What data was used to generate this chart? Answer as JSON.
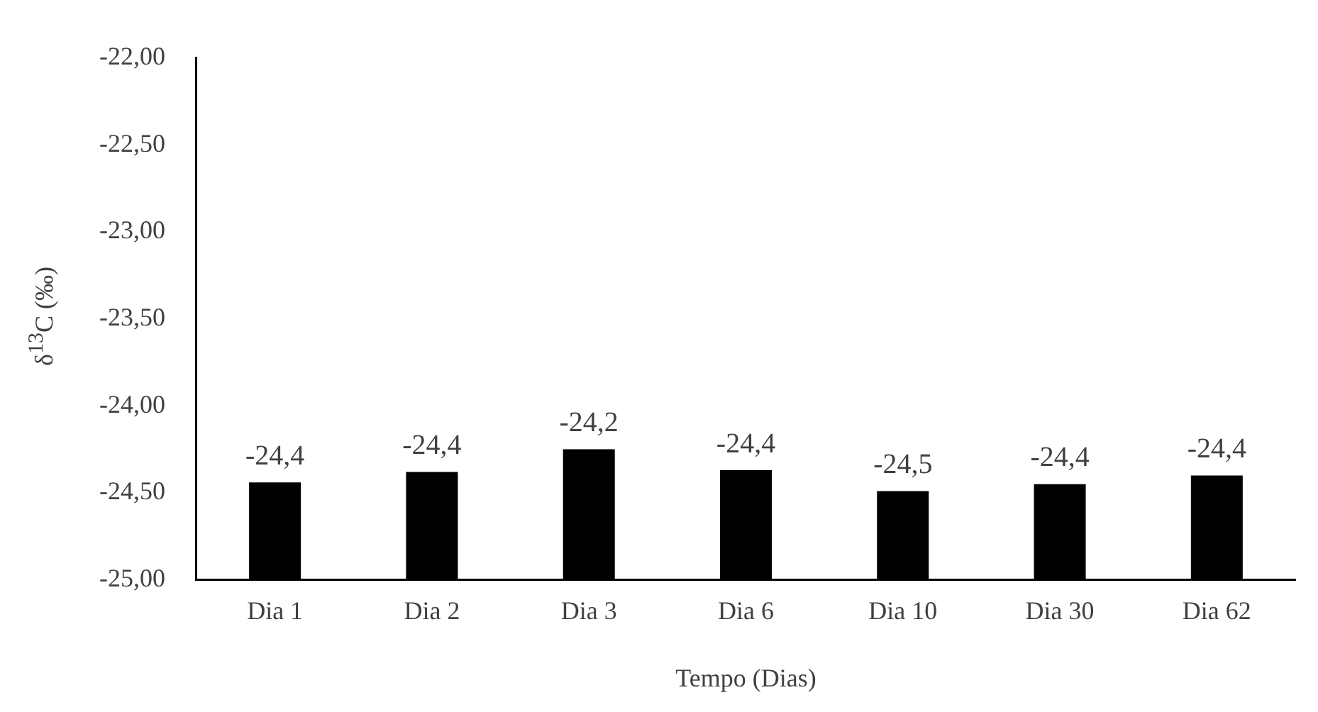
{
  "chart_data": {
    "type": "bar",
    "xlabel": "Tempo (Dias)",
    "ylabel": "δ$^{13}$C (‰)",
    "categories": [
      "Dia 1",
      "Dia 2",
      "Dia 3",
      "Dia 6",
      "Dia 10",
      "Dia 30",
      "Dia 62"
    ],
    "values": [
      0.56,
      0.62,
      0.75,
      0.63,
      0.51,
      0.55,
      0.6
    ],
    "base": [
      -25,
      -25,
      -25,
      -25,
      -25,
      -25,
      -25
    ],
    "value_labels": [
      "-24,4",
      "-24,4",
      "-24,2",
      "-24,4",
      "-24,5",
      "-24,4",
      "-24,4"
    ],
    "color": "#000000",
    "ylim": [
      -25,
      -22
    ],
    "yticks": [
      {
        "value": -25,
        "label": "-25,00"
      },
      {
        "value": -24.5,
        "label": "-24,50"
      },
      {
        "value": -24,
        "label": "-24,00"
      },
      {
        "value": -23.5,
        "label": "-23,50"
      },
      {
        "value": -23,
        "label": "-23,00"
      },
      {
        "value": -22.5,
        "label": "-22,50"
      },
      {
        "value": -22,
        "label": "-22,00"
      }
    ],
    "grid": false,
    "legend": false
  }
}
